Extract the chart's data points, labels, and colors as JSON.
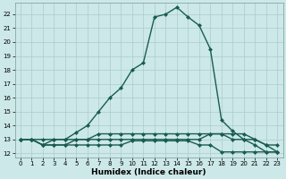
{
  "xlabel": "Humidex (Indice chaleur)",
  "background_color": "#cce8e8",
  "grid_color": "#aacccc",
  "line_color": "#1a5c52",
  "xlim": [
    -0.5,
    23.5
  ],
  "ylim": [
    11.7,
    22.8
  ],
  "xticks": [
    0,
    1,
    2,
    3,
    4,
    5,
    6,
    7,
    8,
    9,
    10,
    11,
    12,
    13,
    14,
    15,
    16,
    17,
    18,
    19,
    20,
    21,
    22,
    23
  ],
  "yticks": [
    12,
    13,
    14,
    15,
    16,
    17,
    18,
    19,
    20,
    21,
    22
  ],
  "series": [
    {
      "x": [
        0,
        1,
        2,
        3,
        4,
        5,
        6,
        7,
        8,
        9,
        10,
        11,
        12,
        13,
        14,
        15,
        16,
        17,
        18,
        19,
        20,
        21,
        22,
        23
      ],
      "y": [
        13,
        13,
        12.6,
        12.6,
        12.6,
        12.6,
        12.6,
        12.6,
        12.6,
        12.6,
        12.9,
        12.9,
        12.9,
        12.9,
        12.9,
        12.9,
        12.6,
        12.6,
        12.1,
        12.1,
        12.1,
        12.1,
        12.1,
        12.1
      ]
    },
    {
      "x": [
        0,
        1,
        2,
        3,
        4,
        5,
        6,
        7,
        8,
        9,
        10,
        11,
        12,
        13,
        14,
        15,
        16,
        17,
        18,
        19,
        20,
        21,
        22,
        23
      ],
      "y": [
        13,
        13,
        12.6,
        13,
        13,
        13,
        13,
        13,
        13,
        13,
        13,
        13,
        13,
        13,
        13,
        13,
        13,
        13.4,
        13.4,
        13,
        13,
        13,
        12.6,
        12.6
      ]
    },
    {
      "x": [
        0,
        1,
        2,
        3,
        4,
        5,
        6,
        7,
        8,
        9,
        10,
        11,
        12,
        13,
        14,
        15,
        16,
        17,
        18,
        19,
        20,
        21,
        22,
        23
      ],
      "y": [
        13,
        13,
        12.6,
        12.6,
        12.6,
        13,
        13,
        13.4,
        13.4,
        13.4,
        13.4,
        13.4,
        13.4,
        13.4,
        13.4,
        13.4,
        13.4,
        13.4,
        13.4,
        13.4,
        13.4,
        13,
        12.6,
        12.1
      ]
    },
    {
      "x": [
        0,
        1,
        2,
        3,
        4,
        5,
        6,
        7,
        8,
        9,
        10,
        11,
        12,
        13,
        14,
        15,
        16,
        17,
        18,
        19,
        20,
        21,
        22,
        23
      ],
      "y": [
        13,
        13,
        13,
        13,
        13,
        13.5,
        14,
        15,
        16,
        16.7,
        18,
        18.5,
        21.8,
        22.0,
        22.5,
        21.8,
        21.2,
        19.5,
        14.4,
        13.6,
        13,
        12.6,
        12.1,
        12.1
      ]
    }
  ],
  "marker": "D",
  "markersize": 2.0,
  "linewidth": 1.0,
  "tick_fontsize": 5.0,
  "xlabel_fontsize": 6.5
}
